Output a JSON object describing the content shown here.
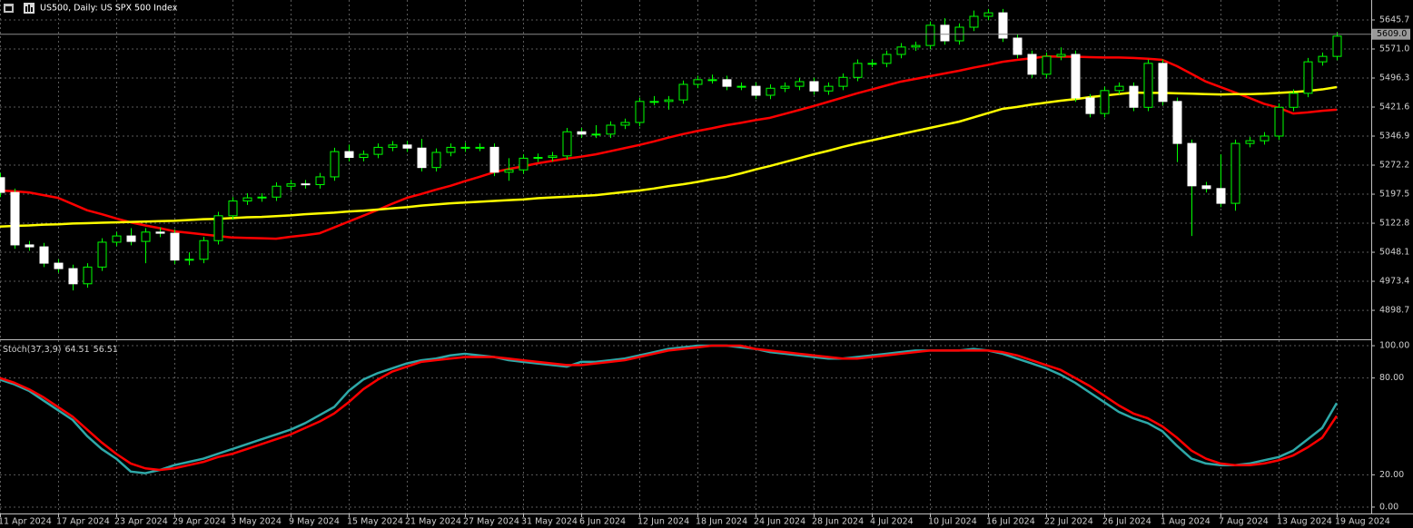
{
  "chart_data": [
    {
      "type": "candlestick",
      "title": "US500, Daily: US SPX 500 Index",
      "categories": [
        "11 Apr 2024",
        null,
        null,
        null,
        "17 Apr 2024",
        null,
        null,
        null,
        "23 Apr 2024",
        null,
        null,
        null,
        "29 Apr 2024",
        null,
        null,
        null,
        "3 May 2024",
        null,
        null,
        null,
        "9 May 2024",
        null,
        null,
        null,
        "15 May 2024",
        null,
        null,
        null,
        "21 May 2024",
        null,
        null,
        null,
        "27 May 2024",
        null,
        null,
        null,
        "31 May 2024",
        null,
        null,
        null,
        "6 Jun 2024",
        null,
        null,
        null,
        "12 Jun 2024",
        null,
        null,
        null,
        "18 Jun 2024",
        null,
        null,
        null,
        "24 Jun 2024",
        null,
        null,
        null,
        "28 Jun 2024",
        null,
        null,
        null,
        "4 Jul 2024",
        null,
        null,
        null,
        "10 Jul 2024",
        null,
        null,
        null,
        "16 Jul 2024",
        null,
        null,
        null,
        "22 Jul 2024",
        null,
        null,
        null,
        "26 Jul 2024",
        null,
        null,
        null,
        "1 Aug 2024",
        null,
        null,
        null,
        "7 Aug 2024",
        null,
        null,
        null,
        "13 Aug 2024",
        null,
        null,
        null,
        "19 Aug 2024"
      ],
      "open": [
        5240,
        5202,
        5067,
        5062,
        5020,
        5006,
        4967,
        5010,
        5074,
        5090,
        5076,
        5100,
        5097,
        5028,
        5030,
        5078,
        5142,
        5180,
        5188,
        5190,
        5218,
        5224,
        5222,
        5242,
        5307,
        5292,
        5300,
        5318,
        5324,
        5316,
        5266,
        5305,
        5318,
        5318,
        5318,
        5254,
        5260,
        5290,
        5292,
        5296,
        5358,
        5352,
        5352,
        5375,
        5382,
        5436,
        5436,
        5440,
        5480,
        5492,
        5492,
        5475,
        5475,
        5452,
        5470,
        5475,
        5487,
        5463,
        5475,
        5498,
        5534,
        5534,
        5557,
        5576,
        5580,
        5632,
        5592,
        5627,
        5655,
        5664,
        5599,
        5557,
        5506,
        5552,
        5557,
        5445,
        5405,
        5464,
        5475,
        5421,
        5534,
        5436,
        5328,
        5219,
        5212,
        5174,
        5328,
        5335,
        5347,
        5421,
        5457,
        5538,
        5552
      ],
      "high": [
        5252,
        5212,
        5077,
        5072,
        5030,
        5016,
        5020,
        5084,
        5100,
        5110,
        5110,
        5112,
        5107,
        5048,
        5088,
        5152,
        5190,
        5200,
        5200,
        5228,
        5234,
        5234,
        5252,
        5317,
        5325,
        5310,
        5328,
        5334,
        5334,
        5340,
        5315,
        5328,
        5330,
        5328,
        5328,
        5290,
        5300,
        5302,
        5306,
        5368,
        5368,
        5375,
        5385,
        5392,
        5446,
        5450,
        5450,
        5490,
        5502,
        5505,
        5502,
        5485,
        5485,
        5480,
        5485,
        5497,
        5497,
        5485,
        5508,
        5544,
        5544,
        5567,
        5586,
        5590,
        5642,
        5650,
        5637,
        5670,
        5674,
        5674,
        5609,
        5567,
        5562,
        5575,
        5567,
        5455,
        5474,
        5485,
        5485,
        5544,
        5544,
        5446,
        5338,
        5229,
        5300,
        5338,
        5345,
        5357,
        5431,
        5467,
        5548,
        5562,
        5614
      ],
      "low": [
        5190,
        5057,
        5052,
        5010,
        4996,
        4950,
        4957,
        5000,
        5064,
        5066,
        5020,
        5087,
        5018,
        5015,
        5020,
        5068,
        5132,
        5170,
        5178,
        5180,
        5208,
        5212,
        5212,
        5232,
        5282,
        5282,
        5290,
        5308,
        5306,
        5256,
        5256,
        5295,
        5306,
        5308,
        5244,
        5232,
        5250,
        5280,
        5282,
        5286,
        5342,
        5342,
        5342,
        5365,
        5372,
        5426,
        5415,
        5430,
        5470,
        5482,
        5465,
        5465,
        5442,
        5442,
        5460,
        5465,
        5453,
        5453,
        5465,
        5488,
        5524,
        5524,
        5547,
        5566,
        5570,
        5582,
        5582,
        5617,
        5645,
        5589,
        5547,
        5496,
        5496,
        5542,
        5435,
        5395,
        5395,
        5454,
        5411,
        5411,
        5426,
        5280,
        5090,
        5202,
        5164,
        5155,
        5318,
        5325,
        5337,
        5411,
        5447,
        5528,
        5542
      ],
      "close": [
        5202,
        5067,
        5062,
        5020,
        5006,
        4967,
        5010,
        5074,
        5090,
        5076,
        5100,
        5097,
        5028,
        5030,
        5078,
        5142,
        5180,
        5188,
        5190,
        5218,
        5224,
        5222,
        5242,
        5307,
        5292,
        5300,
        5318,
        5324,
        5316,
        5266,
        5305,
        5318,
        5318,
        5318,
        5254,
        5260,
        5290,
        5292,
        5296,
        5358,
        5352,
        5352,
        5375,
        5382,
        5436,
        5436,
        5440,
        5480,
        5492,
        5492,
        5475,
        5475,
        5452,
        5470,
        5475,
        5487,
        5463,
        5475,
        5498,
        5534,
        5534,
        5557,
        5576,
        5580,
        5632,
        5592,
        5627,
        5655,
        5664,
        5599,
        5557,
        5506,
        5552,
        5557,
        5445,
        5405,
        5464,
        5475,
        5421,
        5534,
        5436,
        5328,
        5219,
        5212,
        5174,
        5328,
        5335,
        5347,
        5421,
        5457,
        5538,
        5552,
        5604
      ],
      "up_color": "#000000",
      "down_color": "#ffffff",
      "wick_color": "#00ff00",
      "series": [
        {
          "color": "#ff0000",
          "values": [
            5207,
            5205,
            5202,
            5195,
            5188,
            5172,
            5156,
            5146,
            5135,
            5125,
            5117,
            5110,
            5102,
            5098,
            5094,
            5090,
            5086,
            5085,
            5084,
            5083,
            5088,
            5092,
            5097,
            5112,
            5127,
            5142,
            5157,
            5173,
            5188,
            5198,
            5209,
            5219,
            5231,
            5242,
            5254,
            5262,
            5269,
            5277,
            5283,
            5289,
            5294,
            5300,
            5308,
            5316,
            5324,
            5333,
            5343,
            5352,
            5360,
            5367,
            5375,
            5381,
            5388,
            5394,
            5404,
            5414,
            5424,
            5435,
            5446,
            5457,
            5467,
            5477,
            5487,
            5494,
            5501,
            5508,
            5515,
            5523,
            5530,
            5538,
            5543,
            5547,
            5552,
            5551,
            5551,
            5550,
            5549,
            5549,
            5548,
            5546,
            5543,
            5527,
            5507,
            5487,
            5473,
            5459,
            5445,
            5430,
            5420,
            5405,
            5408,
            5412,
            5415
          ]
        },
        {
          "color": "#ffff00",
          "values": [
            5114,
            5116,
            5117,
            5119,
            5120,
            5122,
            5123,
            5124,
            5125,
            5126,
            5127,
            5128,
            5129,
            5131,
            5133,
            5134,
            5136,
            5138,
            5139,
            5141,
            5143,
            5146,
            5148,
            5150,
            5153,
            5155,
            5158,
            5161,
            5164,
            5168,
            5171,
            5174,
            5176,
            5178,
            5180,
            5182,
            5184,
            5187,
            5189,
            5191,
            5193,
            5195,
            5199,
            5203,
            5207,
            5212,
            5218,
            5223,
            5229,
            5236,
            5242,
            5251,
            5261,
            5270,
            5280,
            5290,
            5300,
            5309,
            5319,
            5328,
            5336,
            5344,
            5352,
            5360,
            5368,
            5376,
            5384,
            5395,
            5406,
            5417,
            5422,
            5428,
            5433,
            5438,
            5442,
            5447,
            5451,
            5455,
            5459,
            5458,
            5458,
            5457,
            5456,
            5455,
            5454,
            5455,
            5455,
            5456,
            5458,
            5460,
            5463,
            5467,
            5473
          ]
        }
      ],
      "current_price": {
        "value": 5609,
        "label": "5609.0"
      },
      "ylim": [
        4826.5,
        5697.0
      ],
      "yticks": [
        5645.7,
        {
          "value": 5571,
          "label": "5571.0"
        },
        5496.3,
        5421.6,
        5346.9,
        5272.2,
        5197.5,
        5122.8,
        5048.1,
        4973.4,
        4898.7
      ],
      "grid": true
    },
    {
      "type": "line",
      "title": "Stoch(37,3,9)",
      "series": [
        {
          "color": "#2ea8a8",
          "values": [
            79,
            76,
            72,
            66,
            60,
            54,
            44,
            36,
            30,
            22,
            21,
            23,
            26,
            28,
            30,
            33,
            36,
            39,
            42,
            45,
            48,
            52,
            57,
            62,
            72,
            79,
            83,
            86,
            89,
            91,
            92,
            94,
            95,
            94,
            93,
            91,
            90,
            89,
            88,
            87,
            90,
            90,
            91,
            92,
            94,
            96,
            98,
            99,
            100,
            100,
            100,
            99,
            98,
            96,
            95,
            94,
            93,
            92,
            92,
            93,
            94,
            95,
            96,
            97,
            97,
            97,
            97,
            98,
            97,
            95,
            92,
            89,
            86,
            82,
            77,
            71,
            65,
            59,
            55,
            52,
            47,
            38,
            30,
            27,
            26,
            26,
            27,
            29,
            31,
            35,
            42,
            49,
            64.51
          ]
        },
        {
          "color": "#ff0000",
          "values": [
            80,
            77,
            73,
            68,
            62,
            56,
            48,
            40,
            33,
            27,
            24,
            23,
            24,
            26,
            28,
            31,
            33,
            36,
            39,
            42,
            45,
            49,
            53,
            58,
            65,
            73,
            79,
            84,
            87,
            90,
            91,
            92,
            93,
            93,
            93,
            92,
            91,
            90,
            89,
            88,
            88,
            89,
            90,
            91,
            93,
            95,
            97,
            98,
            99,
            100,
            100,
            100,
            98,
            97,
            96,
            95,
            94,
            93,
            92,
            92,
            93,
            94,
            95,
            96,
            97,
            97,
            97,
            97,
            97,
            96,
            94,
            91,
            88,
            85,
            80,
            75,
            69,
            63,
            58,
            55,
            50,
            43,
            35,
            30,
            27,
            26,
            26,
            27,
            29,
            32,
            37,
            43,
            56.51
          ]
        }
      ],
      "ylim": [
        -3.4,
        103.4
      ],
      "yticks": [
        {
          "value": 100,
          "label": "100.00"
        },
        {
          "value": 80,
          "label": "80.00"
        },
        {
          "value": 20,
          "label": "20.00"
        },
        {
          "value": 0,
          "label": "0.00"
        }
      ],
      "grid": true
    }
  ]
}
